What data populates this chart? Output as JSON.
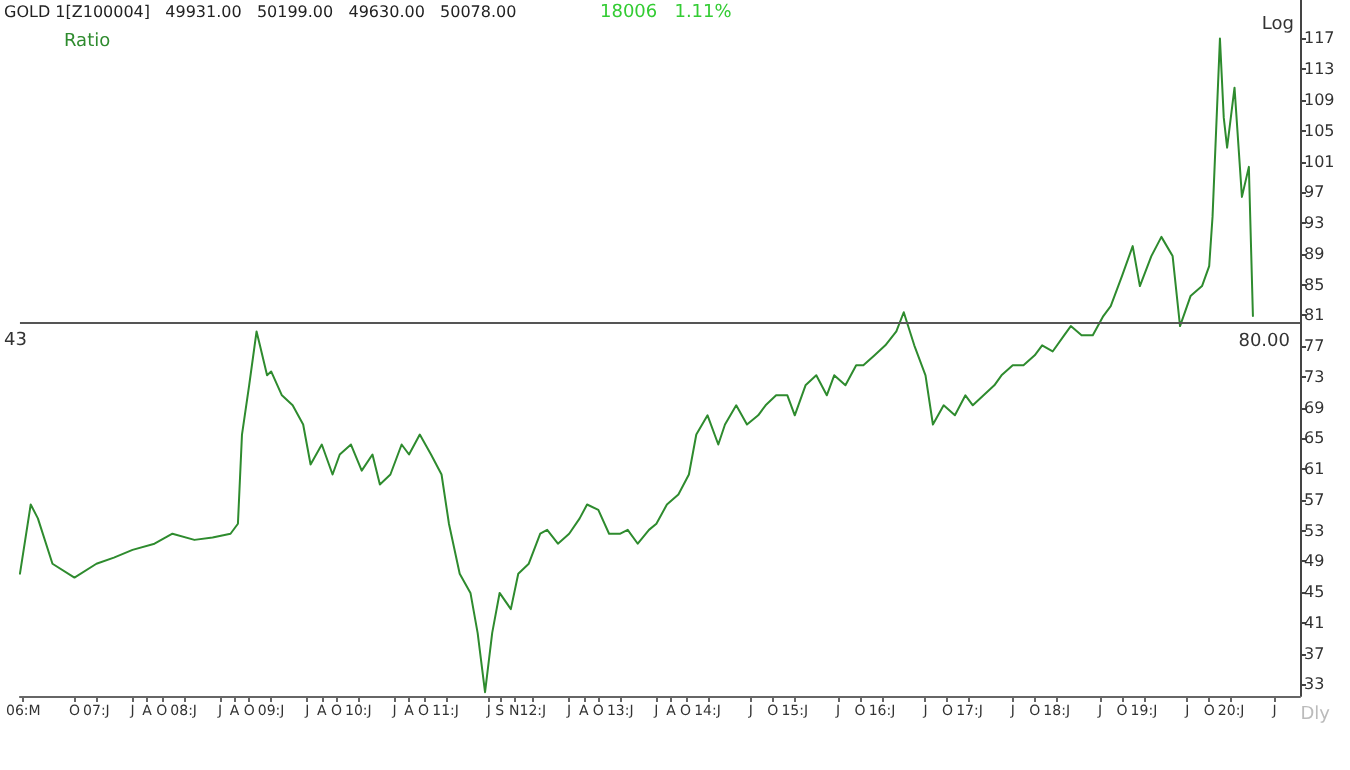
{
  "chart_data": {
    "type": "line",
    "title": "GOLD 1[Z100004]   49931.00   50199.00   49630.00   50078.00",
    "annotations": [
      "18006   1.11%",
      "43",
      "Log",
      "Dly"
    ],
    "legend": "top left",
    "x": [
      "2006-02-15",
      "2006-04-01",
      "2006-05-01",
      "2006-07-01",
      "2006-10-01",
      "2007-01-01",
      "2007-03-15",
      "2007-06-01",
      "2007-09-01",
      "2007-11-15",
      "2008-02-15",
      "2008-05-01",
      "2008-07-15",
      "2008-08-15",
      "2008-09-01",
      "2008-10-01",
      "2008-11-01",
      "2008-11-15",
      "2008-12-15",
      "2009-01-01",
      "2009-02-15",
      "2009-04-01",
      "2009-05-15",
      "2009-06-15",
      "2009-08-01",
      "2009-09-15",
      "2009-10-15",
      "2009-12-01",
      "2010-01-15",
      "2010-03-01",
      "2010-04-01",
      "2010-05-15",
      "2010-07-01",
      "2010-08-01",
      "2010-09-15",
      "2010-11-01",
      "2010-12-15",
      "2011-01-15",
      "2011-03-01",
      "2011-04-15",
      "2011-05-15",
      "2011-06-15",
      "2011-07-15",
      "2011-08-15",
      "2011-10-01",
      "2011-11-01",
      "2011-12-15",
      "2012-02-01",
      "2012-03-01",
      "2012-04-15",
      "2012-06-01",
      "2012-07-15",
      "2012-08-15",
      "2012-10-01",
      "2012-11-15",
      "2013-01-01",
      "2013-02-01",
      "2013-03-15",
      "2013-05-01",
      "2013-06-01",
      "2013-07-15",
      "2013-09-01",
      "2013-10-15",
      "2013-11-15",
      "2014-01-01",
      "2014-02-15",
      "2014-03-15",
      "2014-05-01",
      "2014-06-15",
      "2014-08-01",
      "2014-09-01",
      "2014-10-15",
      "2014-12-01",
      "2015-01-01",
      "2015-02-15",
      "2015-04-01",
      "2015-05-15",
      "2015-06-15",
      "2015-08-01",
      "2015-09-15",
      "2015-10-15",
      "2015-12-01",
      "2016-01-15",
      "2016-03-01",
      "2016-04-01",
      "2016-05-15",
      "2016-07-01",
      "2016-08-01",
      "2016-09-15",
      "2016-11-01",
      "2016-12-15",
      "2017-01-15",
      "2017-03-01",
      "2017-04-15",
      "2017-05-15",
      "2017-07-01",
      "2017-08-15",
      "2017-10-01",
      "2017-11-01",
      "2017-12-15",
      "2018-02-01",
      "2018-03-01",
      "2018-04-15",
      "2018-06-01",
      "2018-07-15",
      "2018-08-15",
      "2018-10-01",
      "2018-11-15",
      "2018-12-15",
      "2019-02-01",
      "2019-03-15",
      "2019-05-01",
      "2019-06-01",
      "2019-07-15",
      "2019-09-01",
      "2019-10-01",
      "2019-10-15",
      "2019-11-15",
      "2019-12-01",
      "2019-12-15",
      "2020-01-15",
      "2020-02-01",
      "2020-02-15",
      "2020-03-15",
      "2020-04-01"
    ],
    "series": [
      {
        "name": "Ratio",
        "color": "#2e8b2e",
        "values": [
          47.4,
          56.4,
          54.6,
          48.7,
          46.9,
          48.7,
          49.5,
          50.5,
          51.3,
          52.6,
          51.8,
          52.1,
          52.6,
          53.9,
          65.5,
          71.9,
          78.9,
          77.1,
          73.2,
          73.7,
          70.6,
          69.3,
          66.8,
          61.6,
          64.2,
          60.3,
          62.9,
          64.2,
          60.8,
          62.9,
          59.0,
          60.3,
          64.2,
          62.9,
          65.5,
          62.9,
          60.3,
          53.9,
          47.4,
          44.9,
          39.7,
          32.0,
          39.7,
          44.9,
          42.8,
          47.4,
          48.7,
          52.6,
          53.1,
          51.3,
          52.6,
          54.6,
          56.4,
          55.7,
          52.6,
          52.6,
          53.1,
          51.3,
          53.1,
          53.9,
          56.4,
          57.7,
          60.3,
          65.5,
          68.0,
          64.2,
          66.8,
          69.3,
          66.8,
          68.0,
          69.3,
          70.6,
          70.6,
          68.0,
          71.9,
          73.2,
          70.6,
          73.2,
          71.9,
          74.5,
          74.5,
          75.8,
          77.1,
          78.9,
          81.4,
          77.1,
          73.2,
          66.8,
          69.3,
          68.0,
          70.6,
          69.3,
          70.6,
          71.9,
          73.2,
          74.5,
          74.5,
          75.8,
          77.1,
          76.3,
          78.4,
          79.6,
          78.4,
          78.4,
          80.9,
          82.2,
          86.1,
          90.0,
          84.8,
          88.7,
          91.2,
          88.7,
          79.6,
          83.5,
          84.8,
          87.4,
          93.8,
          117.0,
          106.7,
          102.8,
          110.6,
          102.8,
          96.4,
          100.3,
          80.9
        ]
      }
    ],
    "xlim": [
      "2006-02-15",
      "2020-10-15"
    ],
    "xticks": [
      {
        "value": "2006-03-01",
        "label": "06:M"
      },
      {
        "value": "2006-10-01",
        "label": "O"
      },
      {
        "value": "2007-01-01",
        "label": "07:J"
      },
      {
        "value": "2007-06-01",
        "label": "J"
      },
      {
        "value": "2007-08-01",
        "label": "A"
      },
      {
        "value": "2007-10-01",
        "label": "O"
      },
      {
        "value": "2008-01-01",
        "label": "08:J"
      },
      {
        "value": "2008-06-01",
        "label": "J"
      },
      {
        "value": "2008-08-01",
        "label": "A"
      },
      {
        "value": "2008-10-01",
        "label": "O"
      },
      {
        "value": "2009-01-01",
        "label": "09:J"
      },
      {
        "value": "2009-06-01",
        "label": "J"
      },
      {
        "value": "2009-08-01",
        "label": "A"
      },
      {
        "value": "2009-10-01",
        "label": "O"
      },
      {
        "value": "2010-01-01",
        "label": "10:J"
      },
      {
        "value": "2010-06-01",
        "label": "J"
      },
      {
        "value": "2010-08-01",
        "label": "A"
      },
      {
        "value": "2010-10-01",
        "label": "O"
      },
      {
        "value": "2011-01-01",
        "label": "11:J"
      },
      {
        "value": "2011-07-01",
        "label": "J"
      },
      {
        "value": "2011-08-15",
        "label": "S"
      },
      {
        "value": "2011-10-15",
        "label": "N"
      },
      {
        "value": "2012-01-01",
        "label": "12:J"
      },
      {
        "value": "2012-06-01",
        "label": "J"
      },
      {
        "value": "2012-08-01",
        "label": "A"
      },
      {
        "value": "2012-10-01",
        "label": "O"
      },
      {
        "value": "2013-01-01",
        "label": "13:J"
      },
      {
        "value": "2013-06-01",
        "label": "J"
      },
      {
        "value": "2013-08-01",
        "label": "A"
      },
      {
        "value": "2013-10-01",
        "label": "O"
      },
      {
        "value": "2014-01-01",
        "label": "14:J"
      },
      {
        "value": "2014-07-01",
        "label": "J"
      },
      {
        "value": "2014-10-01",
        "label": "O"
      },
      {
        "value": "2015-01-01",
        "label": "15:J"
      },
      {
        "value": "2015-07-01",
        "label": "J"
      },
      {
        "value": "2015-10-01",
        "label": "O"
      },
      {
        "value": "2016-01-01",
        "label": "16:J"
      },
      {
        "value": "2016-07-01",
        "label": "J"
      },
      {
        "value": "2016-10-01",
        "label": "O"
      },
      {
        "value": "2017-01-01",
        "label": "17:J"
      },
      {
        "value": "2017-07-01",
        "label": "J"
      },
      {
        "value": "2017-10-01",
        "label": "O"
      },
      {
        "value": "2018-01-01",
        "label": "18:J"
      },
      {
        "value": "2018-07-01",
        "label": "J"
      },
      {
        "value": "2018-10-01",
        "label": "O"
      },
      {
        "value": "2019-01-01",
        "label": "19:J"
      },
      {
        "value": "2019-07-01",
        "label": "J"
      },
      {
        "value": "2019-10-01",
        "label": "O"
      },
      {
        "value": "2020-01-01",
        "label": "20:J"
      },
      {
        "value": "2020-07-01",
        "label": "J"
      }
    ],
    "ylim": [
      31.5,
      122
    ],
    "yticks": [
      33,
      37,
      41,
      45,
      49,
      53,
      57,
      61,
      65,
      69,
      73,
      77,
      81,
      85,
      89,
      93,
      97,
      101,
      105,
      109,
      113,
      117
    ],
    "grid": false,
    "marker": "none",
    "line_style": "solid",
    "ref_lines": [
      {
        "axis": "y",
        "value": 80,
        "label": "80.00",
        "color": "#555555"
      }
    ]
  }
}
